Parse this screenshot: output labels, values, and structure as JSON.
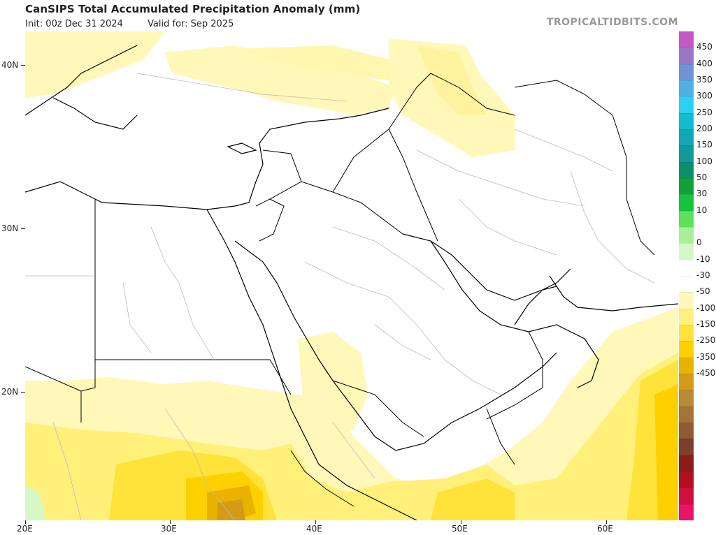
{
  "header": {
    "title": "CanSIPS Total Accumulated Precipitation Anomaly (mm)",
    "init": "Init: 00z Dec 31 2024",
    "valid": "Valid for: Sep 2025",
    "brand": "TROPICALTIDBITS.COM"
  },
  "axes": {
    "lat_labels": [
      "40N",
      "30N",
      "20N"
    ],
    "lon_labels": [
      "20E",
      "30E",
      "40E",
      "50E",
      "60E"
    ]
  },
  "colorbar": {
    "labels": [
      "450",
      "400",
      "350",
      "300",
      "250",
      "200",
      "150",
      "100",
      "50",
      "30",
      "10",
      "0",
      "-10",
      "-30",
      "-50",
      "-100",
      "-150",
      "-250",
      "-350",
      "-450"
    ],
    "colors": [
      "#c35ac4",
      "#9a76c6",
      "#6f93d6",
      "#4fb0e6",
      "#2bd0f2",
      "#12bcd0",
      "#10a8b6",
      "#109a9a",
      "#0c8f6e",
      "#10a23a",
      "#16c23e",
      "#5fe05e",
      "#a9ef98",
      "#d6f7c6",
      "#ffffff",
      "#ffffff",
      "#fff8b8",
      "#fff07a",
      "#ffe23a",
      "#ffd000",
      "#e9b200",
      "#d39b16",
      "#bb8a34",
      "#a4733a",
      "#8f5c32",
      "#7b3f2a",
      "#8c1d1d",
      "#b01020",
      "#d0103c",
      "#e8146a"
    ]
  }
}
